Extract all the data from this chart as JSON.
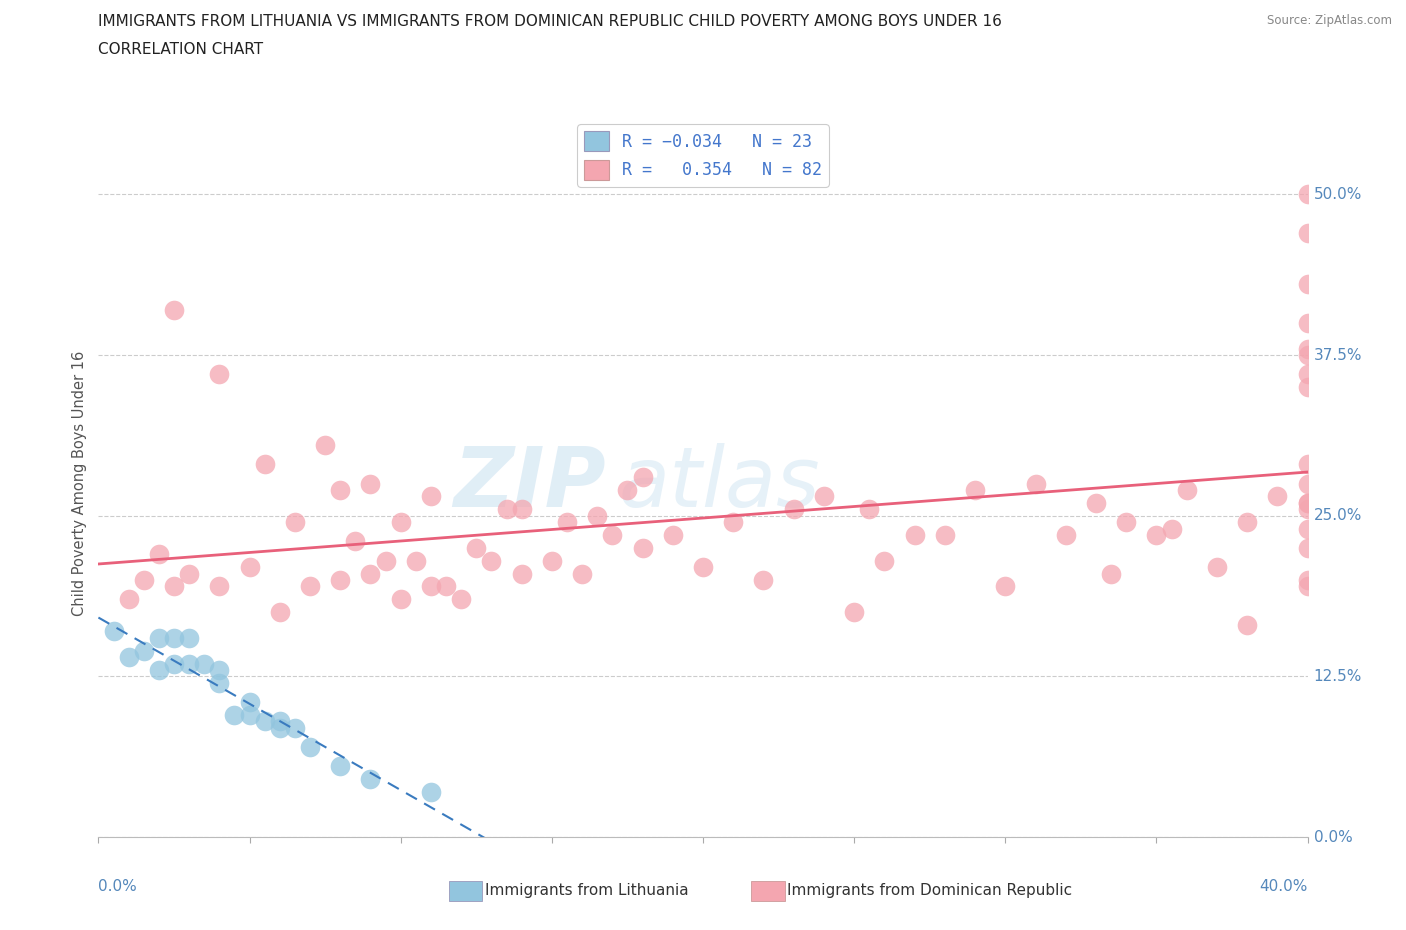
{
  "title_line1": "IMMIGRANTS FROM LITHUANIA VS IMMIGRANTS FROM DOMINICAN REPUBLIC CHILD POVERTY AMONG BOYS UNDER 16",
  "title_line2": "CORRELATION CHART",
  "source": "Source: ZipAtlas.com",
  "ylabel": "Child Poverty Among Boys Under 16",
  "xmin": 0.0,
  "xmax": 0.4,
  "ymin": 0.0,
  "ymax": 0.55,
  "yticks": [
    0.0,
    0.125,
    0.25,
    0.375,
    0.5
  ],
  "ytick_labels": [
    "0.0%",
    "12.5%",
    "25.0%",
    "37.5%",
    "50.0%"
  ],
  "color_lithuania": "#92c5de",
  "color_dominican": "#f4a6b0",
  "color_lithuania_line": "#3a7bbf",
  "color_dominican_line": "#e8607a",
  "watermark_zip": "ZIP",
  "watermark_atlas": "atlas",
  "lithuania_scatter_x": [
    0.005,
    0.01,
    0.015,
    0.02,
    0.02,
    0.025,
    0.025,
    0.03,
    0.03,
    0.035,
    0.04,
    0.04,
    0.045,
    0.05,
    0.05,
    0.055,
    0.06,
    0.06,
    0.065,
    0.07,
    0.08,
    0.09,
    0.11
  ],
  "lithuania_scatter_y": [
    0.16,
    0.14,
    0.145,
    0.13,
    0.155,
    0.135,
    0.155,
    0.135,
    0.155,
    0.135,
    0.12,
    0.13,
    0.095,
    0.095,
    0.105,
    0.09,
    0.085,
    0.09,
    0.085,
    0.07,
    0.055,
    0.045,
    0.035
  ],
  "dominican_scatter_x": [
    0.01,
    0.015,
    0.02,
    0.025,
    0.025,
    0.03,
    0.04,
    0.04,
    0.05,
    0.055,
    0.06,
    0.065,
    0.07,
    0.075,
    0.08,
    0.08,
    0.085,
    0.09,
    0.09,
    0.095,
    0.1,
    0.1,
    0.105,
    0.11,
    0.11,
    0.115,
    0.12,
    0.125,
    0.13,
    0.135,
    0.14,
    0.14,
    0.15,
    0.155,
    0.16,
    0.165,
    0.17,
    0.175,
    0.18,
    0.18,
    0.19,
    0.2,
    0.21,
    0.22,
    0.23,
    0.24,
    0.25,
    0.255,
    0.26,
    0.27,
    0.28,
    0.29,
    0.3,
    0.31,
    0.32,
    0.33,
    0.335,
    0.34,
    0.35,
    0.355,
    0.36,
    0.37,
    0.38,
    0.38,
    0.39,
    0.4,
    0.4,
    0.4,
    0.4,
    0.4,
    0.4,
    0.4,
    0.4,
    0.4,
    0.4,
    0.4,
    0.4,
    0.4,
    0.4,
    0.4,
    0.4,
    0.4
  ],
  "dominican_scatter_y": [
    0.185,
    0.2,
    0.22,
    0.195,
    0.41,
    0.205,
    0.195,
    0.36,
    0.21,
    0.29,
    0.175,
    0.245,
    0.195,
    0.305,
    0.2,
    0.27,
    0.23,
    0.205,
    0.275,
    0.215,
    0.185,
    0.245,
    0.215,
    0.195,
    0.265,
    0.195,
    0.185,
    0.225,
    0.215,
    0.255,
    0.205,
    0.255,
    0.215,
    0.245,
    0.205,
    0.25,
    0.235,
    0.27,
    0.225,
    0.28,
    0.235,
    0.21,
    0.245,
    0.2,
    0.255,
    0.265,
    0.175,
    0.255,
    0.215,
    0.235,
    0.235,
    0.27,
    0.195,
    0.275,
    0.235,
    0.26,
    0.205,
    0.245,
    0.235,
    0.24,
    0.27,
    0.21,
    0.165,
    0.245,
    0.265,
    0.225,
    0.26,
    0.36,
    0.4,
    0.43,
    0.47,
    0.5,
    0.195,
    0.255,
    0.275,
    0.29,
    0.35,
    0.375,
    0.38,
    0.24,
    0.26,
    0.2
  ]
}
